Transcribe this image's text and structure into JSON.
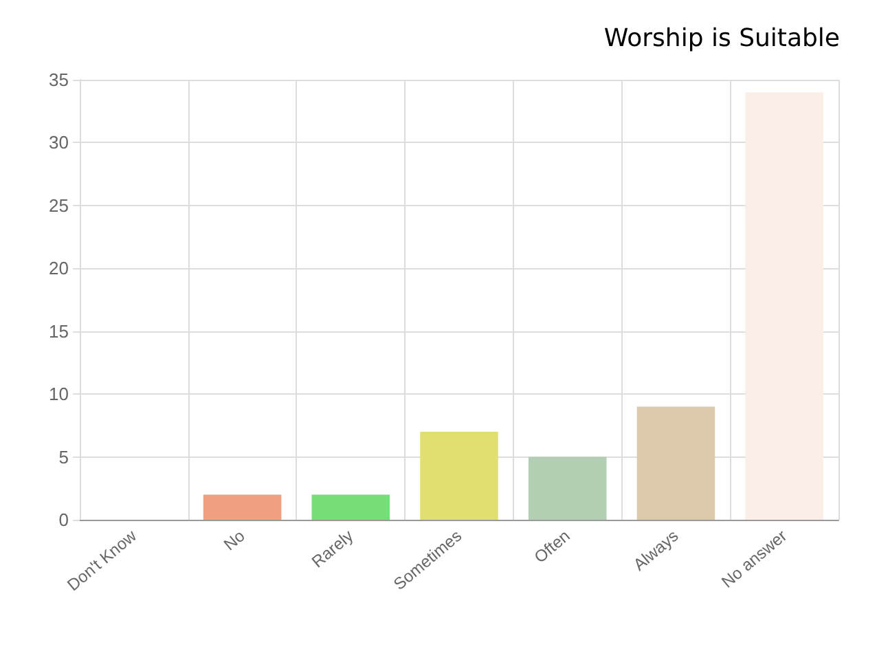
{
  "chart_data": {
    "type": "bar",
    "title": "Worship is Suitable",
    "categories": [
      "Don't Know",
      "No",
      "Rarely",
      "Sometimes",
      "Often",
      "Always",
      "No answer"
    ],
    "values": [
      0,
      2,
      2,
      7,
      5,
      9,
      34
    ],
    "colors": [
      "#cccccc",
      "#f0a080",
      "#77dd77",
      "#e0e070",
      "#b3cfb3",
      "#dcc8aa",
      "#fbeee8"
    ],
    "ylim": [
      0,
      35
    ],
    "yticks": [
      0,
      5,
      10,
      15,
      20,
      25,
      30,
      35
    ],
    "grid": true
  }
}
